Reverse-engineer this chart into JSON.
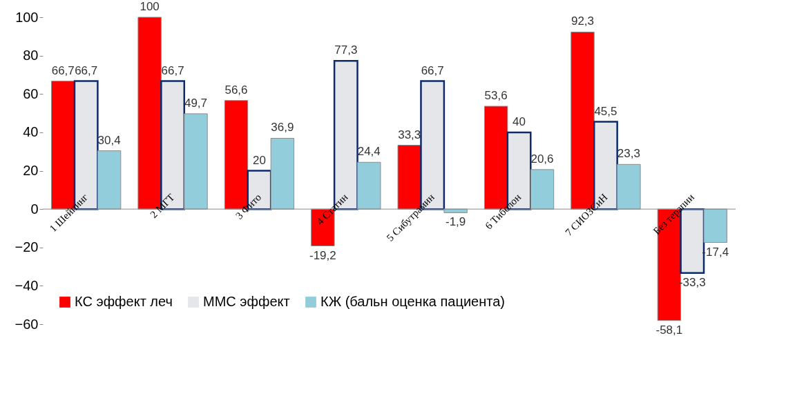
{
  "chart_data": {
    "type": "bar",
    "categories": [
      "1 Шейпинг",
      "2 МГТ",
      "3 Фито",
      "4 Статин",
      "5 Сибутрамин",
      "6  Тиболон",
      "7 СИОЗСиН",
      "Без терапии"
    ],
    "series": [
      {
        "name": "КС эффект леч",
        "color": "#ff0000",
        "values": [
          66.7,
          100,
          56.6,
          -19.2,
          33.3,
          53.6,
          92.3,
          -58.1
        ],
        "value_labels": [
          "66,7",
          "100",
          "56,6",
          "-19,2",
          "33,3",
          "53,6",
          "92,3",
          "-58,1"
        ]
      },
      {
        "name": "ММС эффект",
        "color": "#e4e6ea",
        "values": [
          66.7,
          66.7,
          20,
          77.3,
          66.7,
          40,
          45.5,
          -33.3
        ],
        "value_labels": [
          "66,7",
          "66,7",
          "20",
          "77,3",
          "66,7",
          "40",
          "45,5",
          "-33,3"
        ]
      },
      {
        "name": "КЖ (бальн оценка пациента)",
        "color": "#92cddc",
        "values": [
          30.4,
          49.7,
          36.9,
          24.4,
          -1.9,
          20.6,
          23.3,
          -17.4
        ],
        "value_labels": [
          "30,4",
          "49,7",
          "36,9",
          "24,4",
          "-1,9",
          "20,6",
          "23,3",
          "-17,4"
        ]
      }
    ],
    "ylim": [
      -60,
      100
    ],
    "yticks": [
      -60,
      -40,
      -20,
      0,
      20,
      40,
      60,
      80,
      100
    ],
    "grid": false,
    "legend": "bottom left"
  }
}
